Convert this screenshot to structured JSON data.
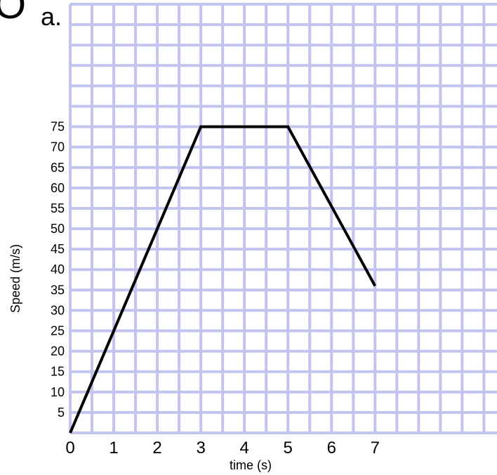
{
  "header": {
    "partial_glyph": "O",
    "part_label": "a."
  },
  "chart_data": {
    "type": "line",
    "title": "",
    "xlabel": "time (s)",
    "ylabel": "Speed (m/s)",
    "x": [
      0,
      3,
      5,
      7
    ],
    "series": [
      {
        "values": [
          0,
          75,
          75,
          36
        ]
      }
    ],
    "x_ticks": [
      0,
      1,
      2,
      3,
      4,
      5,
      6,
      7
    ],
    "y_ticks": [
      5,
      10,
      15,
      20,
      25,
      30,
      35,
      40,
      45,
      50,
      55,
      60,
      65,
      70,
      75
    ],
    "xlim": [
      0,
      9.8
    ],
    "ylim": [
      0,
      105
    ],
    "grid": true,
    "colors": {
      "grid": "#c3c3f0",
      "line": "#000000"
    }
  }
}
